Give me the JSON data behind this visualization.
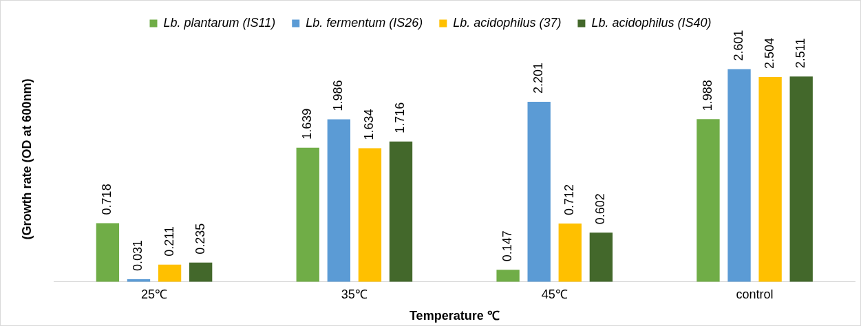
{
  "chart_data": {
    "type": "bar",
    "categories": [
      "25℃",
      "35℃",
      "45℃",
      "control"
    ],
    "series": [
      {
        "name": "Lb. plantarum (IS11)",
        "color": "#70ad47",
        "values": [
          0.718,
          1.639,
          0.147,
          1.988
        ]
      },
      {
        "name": "Lb. fermentum (IS26)",
        "color": "#5b9bd5",
        "values": [
          0.031,
          1.986,
          2.201,
          2.601
        ]
      },
      {
        "name": "Lb. acidophilus (37)",
        "color": "#ffc000",
        "values": [
          0.211,
          1.634,
          0.712,
          2.504
        ]
      },
      {
        "name": "Lb. acidophilus (IS40)",
        "color": "#43682b",
        "values": [
          0.235,
          1.716,
          0.602,
          2.511
        ]
      }
    ],
    "xlabel": "Temperature ℃",
    "ylabel": "(Growth rate (OD at 600nm)",
    "data_labels": true,
    "legend": "top",
    "grid": false,
    "tick_labels": "x"
  }
}
